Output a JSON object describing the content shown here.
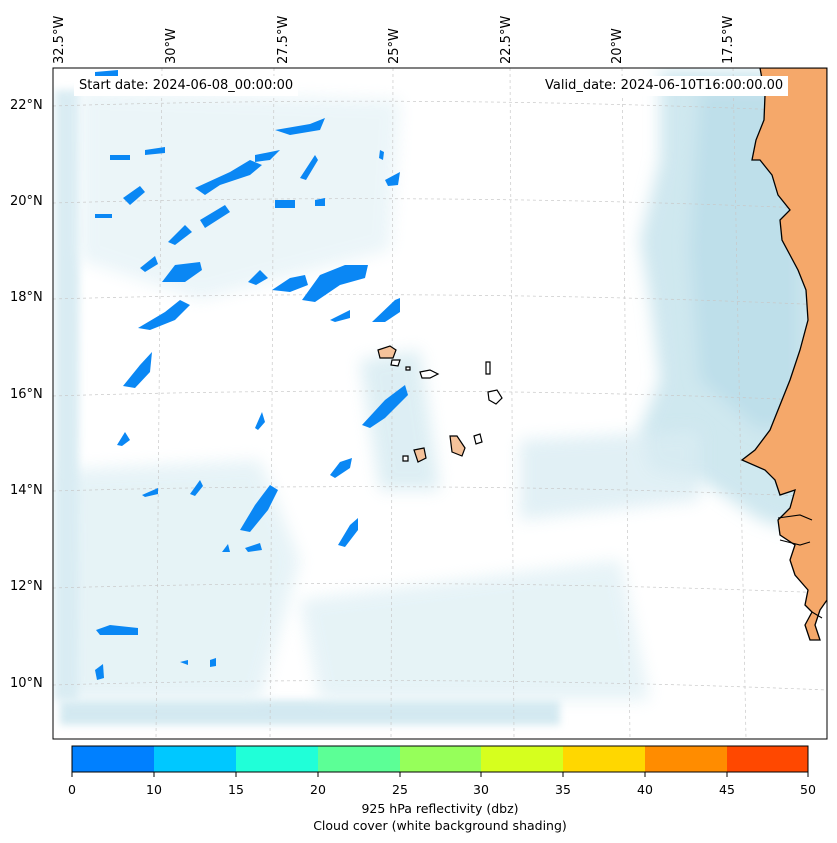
{
  "map": {
    "start_date_label": "Start date: 2024-06-08_00:00:00",
    "valid_date_label": "Valid_date: 2024-06-10T16:00:00.00",
    "longitude_labels": [
      "32.5°W",
      "30°W",
      "27.5°W",
      "25°W",
      "22.5°W",
      "20°W",
      "17.5°W"
    ],
    "latitude_labels": [
      "22°N",
      "20°N",
      "18°N",
      "16°N",
      "14°N",
      "12°N",
      "10°N"
    ],
    "land_color": "#f5a86a",
    "cloud_color": "#bfe0ea",
    "reflectivity_0_10_color": "#0a87f4"
  },
  "colorbar": {
    "ticks": [
      "0",
      "10",
      "15",
      "20",
      "25",
      "30",
      "35",
      "40",
      "45",
      "50"
    ],
    "colors": [
      "#0080ff",
      "#00c8ff",
      "#20ffd8",
      "#5cff96",
      "#96ff5a",
      "#d6ff1e",
      "#ffd700",
      "#ff8c00",
      "#ff4800"
    ],
    "title": "925 hPa reflectivity (dbz)",
    "subtitle": "Cloud cover (white background shading)"
  }
}
